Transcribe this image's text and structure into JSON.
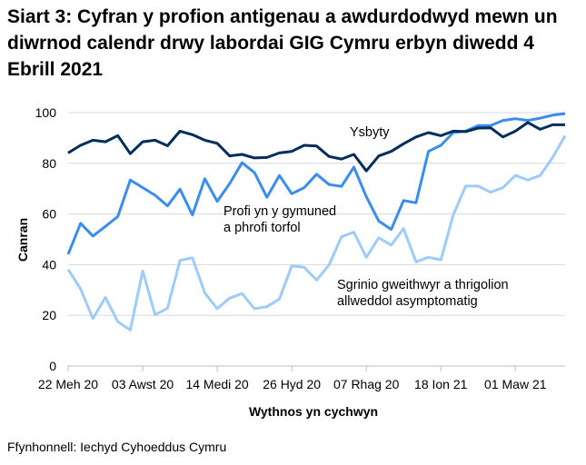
{
  "title": "Siart 3: Cyfran y profion antigenau a awdurdodwyd mewn un diwrnod calendr drwy labordai GIG Cymru erbyn diwedd 4 Ebrill 2021",
  "source": "Ffynhonnell: Iechyd Cyhoeddus Cymru",
  "chart_data": {
    "type": "line",
    "title": "Siart 3: Cyfran y profion antigenau a awdurdodwyd mewn un diwrnod calendr drwy labordai GIG Cymru erbyn diwedd 4 Ebrill 2021",
    "xlabel": "Wythnos yn cychwyn",
    "ylabel": "Canran",
    "ylim": [
      0,
      100
    ],
    "yticks": [
      0,
      20,
      40,
      60,
      80,
      100
    ],
    "grid": true,
    "legend": "inline labels",
    "x": [
      "22 Meh 20",
      "29 Meh 20",
      "06 Gorff 20",
      "13 Gorff 20",
      "20 Gorff 20",
      "27 Gorff 20",
      "03 Awst 20",
      "10 Awst 20",
      "17 Awst 20",
      "24 Awst 20",
      "31 Awst 20",
      "07 Medi 20",
      "14 Medi 20",
      "21 Medi 20",
      "28 Medi 20",
      "05 Hyd 20",
      "12 Hyd 20",
      "19 Hyd 20",
      "26 Hyd 20",
      "02 Tach 20",
      "09 Tach 20",
      "16 Tach 20",
      "23 Tach 20",
      "30 Tach 20",
      "07 Rhag 20",
      "14 Rhag 20",
      "21 Rhag 20",
      "28 Rhag 20",
      "04 Ion 21",
      "11 Ion 21",
      "18 Ion 21",
      "25 Ion 21",
      "01 Chwef 21",
      "08 Chwef 21",
      "15 Chwef 21",
      "22 Chwef 21",
      "01 Maw 21",
      "08 Maw 21",
      "15 Maw 21",
      "22 Maw 21",
      "29 Maw 21"
    ],
    "xtick_labels": [
      "22 Meh 20",
      "03 Awst 20",
      "14 Medi 20",
      "26 Hyd 20",
      "07 Rhag 20",
      "18 Ion 21",
      "01 Maw 21"
    ],
    "series": [
      {
        "name": "Ysbyty",
        "color": "#002D5A",
        "values": [
          84.1,
          87.1,
          89.1,
          88.5,
          90.9,
          83.8,
          88.5,
          89.1,
          86.9,
          92.7,
          91.3,
          89.1,
          87.9,
          82.9,
          83.5,
          82.1,
          82.3,
          84.1,
          84.7,
          87.1,
          86.8,
          82.7,
          81.7,
          83.5,
          77.0,
          82.9,
          84.7,
          87.7,
          90.4,
          92.1,
          90.9,
          92.7,
          92.5,
          93.9,
          94.0,
          90.4,
          92.7,
          96.1,
          93.4,
          95.2,
          95.2
        ]
      },
      {
        "name": "Profi yn y gymuned a phrofi torfol",
        "name_lines": [
          "Profi yn y gymuned",
          "a phrofi torfol"
        ],
        "color": "#3A8DF0",
        "values": [
          44.1,
          56.3,
          51.3,
          55.1,
          59.0,
          73.4,
          70.4,
          67.4,
          63.2,
          69.8,
          59.6,
          73.9,
          65.0,
          72.0,
          80.2,
          76.3,
          66.6,
          75.2,
          68.0,
          70.4,
          75.7,
          71.6,
          70.9,
          78.5,
          66.8,
          57.2,
          53.9,
          65.3,
          64.4,
          84.7,
          87.1,
          92.1,
          92.7,
          94.9,
          94.9,
          96.9,
          97.6,
          96.9,
          97.8,
          99.0,
          99.6
        ]
      },
      {
        "name": "Sgrinio gweithwyr a thrigolion allweddol asymptomatig",
        "name_lines": [
          "Sgrinio gweithwyr a thrigolion",
          "allweddol asymptomatig"
        ],
        "color": "#9DCBFB",
        "values": [
          38.1,
          30.4,
          18.7,
          27.1,
          17.5,
          14.2,
          37.5,
          20.2,
          22.8,
          41.7,
          42.7,
          28.9,
          22.6,
          26.8,
          28.6,
          22.6,
          23.4,
          26.4,
          39.5,
          39.0,
          33.9,
          39.9,
          51.0,
          52.8,
          42.9,
          50.6,
          47.7,
          54.2,
          41.1,
          42.9,
          41.9,
          59.6,
          71.0,
          71.0,
          68.6,
          70.4,
          75.2,
          73.4,
          75.2,
          82.3,
          90.9
        ]
      }
    ]
  }
}
